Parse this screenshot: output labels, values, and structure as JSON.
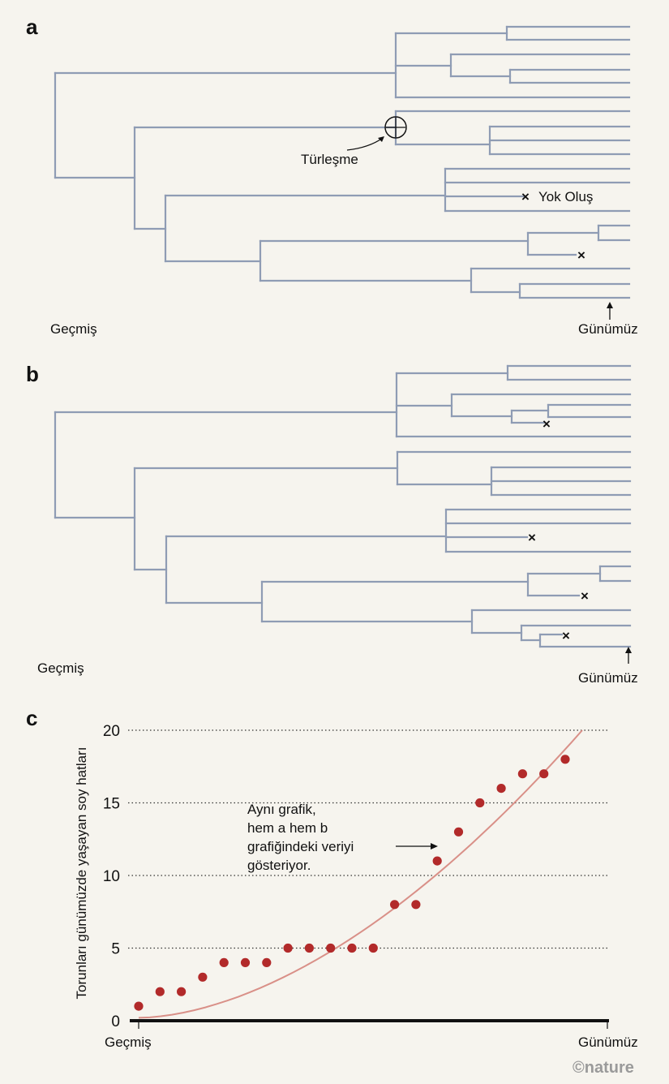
{
  "panels": {
    "a": {
      "letter": "a",
      "left_label": "Geçmiş",
      "right_label": "Günümüz",
      "speciation_label": "Türleşme",
      "extinction_label": "Yok Oluş"
    },
    "b": {
      "letter": "b",
      "left_label": "Geçmiş",
      "right_label": "Günümüz"
    },
    "c": {
      "letter": "c",
      "left_label": "Geçmiş",
      "right_label": "Günümüz"
    }
  },
  "chart_data": {
    "type": "scatter",
    "title": "",
    "xlabel": "",
    "ylabel": "Torunları günümüzde yaşayan soy hatları",
    "ylim": [
      0,
      20
    ],
    "yticks": [
      0,
      5,
      10,
      15,
      20
    ],
    "grid": true,
    "x_start_label": "Geçmiş",
    "x_end_label": "Günümüz",
    "annotation": [
      "Aynı grafik,",
      "hem a hem b",
      "grafiğindeki veriyi",
      "gösteriyor."
    ],
    "series": [
      {
        "values": [
          1,
          2,
          2,
          3,
          4,
          4,
          4,
          5,
          5,
          5,
          5,
          5,
          8,
          8,
          11,
          13,
          15,
          16,
          17,
          17,
          18
        ]
      }
    ],
    "colors": {
      "points": "#b22a2a",
      "trend": "#d99088",
      "axis": "#111111",
      "grid": "#333333"
    }
  },
  "credit": "©nature",
  "colors": {
    "branch": "#8f9cb4",
    "background": "#f6f4ee"
  }
}
